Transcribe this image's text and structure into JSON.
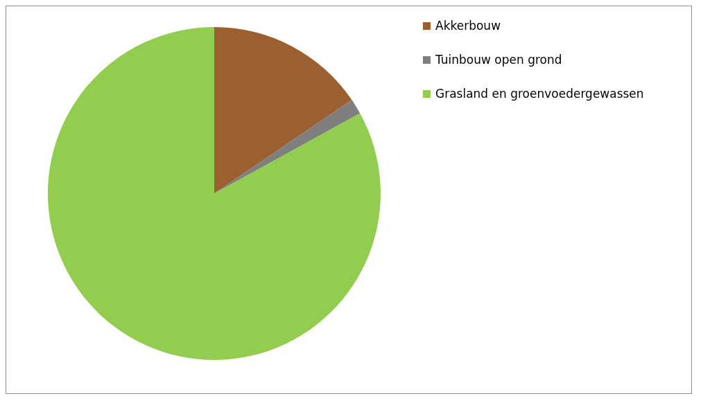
{
  "chart_data": {
    "type": "pie",
    "categories": [
      "Akkerbouw",
      "Tuinbouw open grond",
      "Grasland en groenvoedergewassen"
    ],
    "values": [
      15.5,
      1.5,
      83
    ],
    "colors": [
      "#9c5f2f",
      "#7f7f7f",
      "#92cd50"
    ],
    "legend": "right"
  }
}
